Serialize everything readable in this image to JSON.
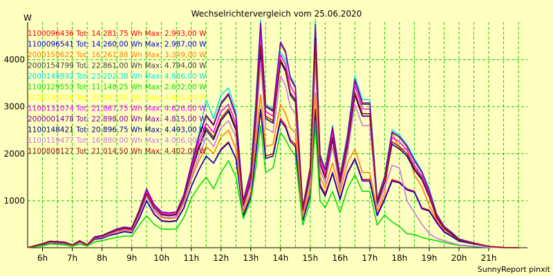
{
  "chart_data": {
    "type": "line",
    "title": "Wechselrichtervergleich vom 25.06.2020",
    "ylabel": "W",
    "footer": "SunnyReport pinxit",
    "ylim": [
      0,
      4800
    ],
    "xlim": [
      5.5,
      22.3
    ],
    "y_ticks": [
      1000,
      2000,
      3000,
      4000
    ],
    "x_ticks": [
      {
        "value": 6,
        "label": "6h"
      },
      {
        "value": 7,
        "label": "7h"
      },
      {
        "value": 8,
        "label": "8h"
      },
      {
        "value": 9,
        "label": "9h"
      },
      {
        "value": 10,
        "label": "10h"
      },
      {
        "value": 11,
        "label": "11h"
      },
      {
        "value": 12,
        "label": "12h"
      },
      {
        "value": 13,
        "label": "13h"
      },
      {
        "value": 14,
        "label": "14h"
      },
      {
        "value": 15,
        "label": "15h"
      },
      {
        "value": 16,
        "label": "16h"
      },
      {
        "value": 17,
        "label": "17h"
      },
      {
        "value": 18,
        "label": "18h"
      },
      {
        "value": 19,
        "label": "19h"
      },
      {
        "value": 20,
        "label": "20h"
      },
      {
        "value": 21,
        "label": "21h"
      }
    ],
    "grid": true,
    "legend_position": "top-left",
    "x": [
      5.5,
      5.75,
      6,
      6.25,
      6.5,
      6.75,
      7,
      7.25,
      7.5,
      7.75,
      8,
      8.25,
      8.5,
      8.75,
      9,
      9.25,
      9.5,
      9.75,
      10,
      10.25,
      10.5,
      10.75,
      11,
      11.25,
      11.5,
      11.75,
      12,
      12.25,
      12.5,
      12.75,
      13,
      13.17,
      13.33,
      13.5,
      13.75,
      14,
      14.17,
      14.33,
      14.5,
      14.75,
      15,
      15.17,
      15.33,
      15.5,
      15.75,
      16,
      16.25,
      16.5,
      16.75,
      17,
      17.25,
      17.5,
      17.75,
      18,
      18.25,
      18.5,
      18.75,
      19,
      19.25,
      19.5,
      19.75,
      20,
      20.5,
      21,
      21.5,
      22
    ],
    "series": [
      {
        "name": "1100096436 Tot: 14.281,75 Wh Max: 2.993,00 W",
        "color": "#FF0000",
        "values": [
          0,
          30,
          60,
          110,
          100,
          90,
          40,
          120,
          50,
          180,
          200,
          260,
          300,
          340,
          320,
          620,
          1000,
          720,
          580,
          560,
          580,
          850,
          1300,
          1650,
          1950,
          1800,
          2100,
          2250,
          1900,
          700,
          1100,
          2000,
          2950,
          1950,
          2000,
          2750,
          2600,
          2300,
          2200,
          600,
          1150,
          2950,
          1350,
          1150,
          1600,
          1050,
          1600,
          1900,
          1450,
          1450,
          700,
          1050,
          1450,
          1400,
          1250,
          1200,
          850,
          800,
          550,
          350,
          250,
          150,
          80,
          30,
          5,
          0
        ]
      },
      {
        "name": "1100096541 Tot: 14.260,00 Wh Max: 2.987,00 W",
        "color": "#0000CC",
        "values": [
          0,
          30,
          60,
          110,
          100,
          90,
          40,
          120,
          50,
          180,
          200,
          260,
          300,
          340,
          320,
          620,
          1000,
          710,
          570,
          550,
          570,
          840,
          1300,
          1650,
          1950,
          1800,
          2080,
          2230,
          1900,
          680,
          1080,
          1980,
          2930,
          1900,
          1950,
          2700,
          2560,
          2260,
          2150,
          580,
          1120,
          2930,
          1300,
          1100,
          1580,
          1020,
          1580,
          1880,
          1420,
          1420,
          680,
          1020,
          1420,
          1380,
          1230,
          1180,
          830,
          780,
          530,
          330,
          240,
          140,
          80,
          30,
          5,
          0
        ]
      },
      {
        "name": "2000150622 Tot: 16.261,88 Wh Max: 3.349,00 W",
        "color": "#FF8000",
        "values": [
          0,
          35,
          70,
          120,
          110,
          100,
          45,
          130,
          55,
          200,
          220,
          280,
          330,
          370,
          350,
          680,
          1100,
          780,
          640,
          620,
          640,
          940,
          1450,
          1850,
          2150,
          2000,
          2350,
          2500,
          2100,
          750,
          1200,
          2250,
          3250,
          2150,
          2200,
          3050,
          2850,
          2550,
          2450,
          650,
          1280,
          3300,
          1500,
          1280,
          1800,
          1180,
          1800,
          2100,
          1600,
          1600,
          780,
          1160,
          2450,
          2100,
          2100,
          1550,
          1300,
          900,
          600,
          400,
          280,
          160,
          90,
          30,
          5,
          0
        ]
      },
      {
        "name": "2000154799 Tot: 22.861,00 Wh Max: 4.794,00 W",
        "color": "#404040",
        "values": [
          0,
          45,
          90,
          140,
          130,
          120,
          60,
          150,
          65,
          230,
          260,
          330,
          400,
          440,
          420,
          800,
          1250,
          920,
          760,
          740,
          760,
          1120,
          1750,
          2350,
          2800,
          2600,
          3050,
          3250,
          2800,
          980,
          1600,
          3000,
          4750,
          3000,
          2900,
          4350,
          4150,
          3600,
          3400,
          850,
          1700,
          4700,
          1950,
          1650,
          2550,
          1500,
          2350,
          3550,
          3050,
          3050,
          1000,
          1500,
          2450,
          2350,
          2150,
          1850,
          1600,
          1200,
          700,
          450,
          320,
          180,
          100,
          30,
          5,
          0
        ]
      },
      {
        "name": "2000149892 Tot: 23.202,38 Wh Max: 4.856,00 W",
        "color": "#00E5E5",
        "values": [
          0,
          45,
          90,
          140,
          130,
          120,
          60,
          150,
          65,
          230,
          260,
          330,
          400,
          440,
          420,
          800,
          1250,
          920,
          760,
          740,
          760,
          1130,
          1780,
          2400,
          3150,
          2750,
          3250,
          3400,
          2900,
          1000,
          1650,
          3150,
          4850,
          3050,
          2950,
          4150,
          4000,
          3650,
          3450,
          860,
          1720,
          4850,
          2000,
          1680,
          2600,
          1520,
          2400,
          3650,
          3150,
          3150,
          1050,
          1520,
          2500,
          2400,
          2200,
          1900,
          1640,
          1250,
          720,
          460,
          330,
          190,
          100,
          30,
          5,
          0
        ]
      },
      {
        "name": "1100129553 Tot: 11.148,25 Wh Max: 2.632,00 W",
        "color": "#00DD00",
        "values": [
          0,
          20,
          40,
          80,
          70,
          60,
          30,
          80,
          35,
          120,
          150,
          190,
          220,
          250,
          240,
          480,
          680,
          500,
          400,
          390,
          400,
          640,
          1050,
          1300,
          1500,
          1250,
          1600,
          1850,
          1500,
          620,
          1000,
          1700,
          2600,
          1600,
          1700,
          2450,
          2300,
          2100,
          1950,
          480,
          980,
          2600,
          1000,
          850,
          1200,
          750,
          1250,
          1550,
          1200,
          1200,
          480,
          700,
          550,
          450,
          300,
          280,
          220,
          180,
          150,
          110,
          80,
          50,
          20,
          10,
          0,
          0
        ]
      },
      {
        "name": "1100131026 Tot: 21.062,50 Wh Max: 4.445,00 W",
        "color": "#FFFF00",
        "values": [
          0,
          40,
          80,
          130,
          120,
          110,
          55,
          140,
          60,
          210,
          240,
          310,
          370,
          410,
          390,
          750,
          1150,
          860,
          710,
          690,
          710,
          1040,
          1620,
          2150,
          2550,
          2350,
          2750,
          2950,
          2550,
          900,
          1450,
          2750,
          4350,
          2800,
          2700,
          4000,
          3800,
          3300,
          3150,
          800,
          1550,
          4400,
          1800,
          1500,
          2350,
          1400,
          2200,
          3300,
          2850,
          2850,
          950,
          1400,
          2250,
          2150,
          2000,
          1700,
          1480,
          1100,
          650,
          420,
          300,
          170,
          90,
          30,
          5,
          0
        ]
      },
      {
        "name": "1100131074 Tot: 21.867,75 Wh Max: 4.626,00 W",
        "color": "#FF00FF",
        "values": [
          0,
          42,
          85,
          135,
          125,
          115,
          58,
          145,
          62,
          220,
          250,
          320,
          385,
          425,
          405,
          770,
          1200,
          890,
          730,
          710,
          730,
          1080,
          1680,
          2250,
          2650,
          2450,
          2900,
          3050,
          2650,
          930,
          1520,
          2850,
          4550,
          2900,
          2800,
          4100,
          3900,
          3450,
          3250,
          820,
          1620,
          4600,
          1880,
          1560,
          2450,
          1450,
          2280,
          3450,
          2950,
          2950,
          980,
          1450,
          2350,
          2250,
          2080,
          1760,
          1520,
          1150,
          680,
          430,
          310,
          175,
          95,
          30,
          5,
          0
        ]
      },
      {
        "name": "2000001478 Tot: 22.898,00 Wh Max: 4.815,00 W",
        "color": "#8000A0",
        "values": [
          0,
          45,
          90,
          140,
          130,
          120,
          60,
          150,
          65,
          230,
          260,
          330,
          400,
          440,
          420,
          800,
          1250,
          920,
          760,
          740,
          760,
          1120,
          1760,
          2370,
          2820,
          2620,
          3080,
          3280,
          2820,
          990,
          1620,
          3020,
          4780,
          3020,
          2920,
          4380,
          4180,
          3620,
          3420,
          860,
          1710,
          4750,
          1960,
          1660,
          2560,
          1510,
          2360,
          3580,
          3080,
          3080,
          1010,
          1510,
          2460,
          2360,
          2160,
          1860,
          1610,
          1210,
          710,
          455,
          325,
          185,
          100,
          30,
          5,
          0
        ]
      },
      {
        "name": "1100148421 Tot: 20.896,75 Wh Max: 4.493,00 W",
        "color": "#000080",
        "values": [
          0,
          40,
          80,
          130,
          120,
          110,
          55,
          140,
          60,
          210,
          240,
          310,
          370,
          410,
          390,
          750,
          1150,
          850,
          700,
          680,
          700,
          1030,
          1600,
          2100,
          2500,
          2300,
          2700,
          2900,
          2500,
          880,
          1420,
          2700,
          4200,
          2750,
          2650,
          3950,
          3750,
          3250,
          3100,
          790,
          1520,
          4450,
          1780,
          1480,
          2300,
          1380,
          2150,
          3250,
          2800,
          2800,
          930,
          1380,
          2200,
          2100,
          1950,
          1650,
          1450,
          1080,
          640,
          410,
          290,
          165,
          90,
          30,
          5,
          0
        ]
      },
      {
        "name": "1100119477 Tot: 16.880,00 Wh Max: 4.006,00 W",
        "color": "#CC77E0",
        "values": [
          0,
          38,
          75,
          125,
          115,
          105,
          50,
          130,
          55,
          200,
          225,
          290,
          345,
          385,
          365,
          700,
          1080,
          800,
          660,
          640,
          660,
          970,
          1500,
          1950,
          2350,
          2150,
          2550,
          2700,
          2350,
          830,
          1330,
          2500,
          3950,
          2550,
          2450,
          3650,
          3450,
          3000,
          2850,
          740,
          1420,
          3950,
          1650,
          1380,
          2150,
          1280,
          2000,
          3050,
          2600,
          2600,
          870,
          1280,
          1750,
          1700,
          1000,
          750,
          500,
          300,
          200,
          150,
          100,
          60,
          30,
          10,
          0,
          0
        ]
      },
      {
        "name": "1100808127 Tot: 21.014,50 Wh Max: 4.402,00 W",
        "color": "#A01010",
        "values": [
          0,
          40,
          80,
          130,
          120,
          110,
          55,
          140,
          60,
          210,
          240,
          310,
          370,
          410,
          390,
          750,
          1150,
          860,
          710,
          690,
          710,
          1040,
          1620,
          2150,
          2550,
          2350,
          2750,
          2950,
          2550,
          900,
          1450,
          2750,
          4300,
          2800,
          2700,
          4000,
          3800,
          3300,
          3150,
          800,
          1550,
          4380,
          1800,
          1500,
          2350,
          1400,
          2200,
          3300,
          2850,
          2850,
          950,
          1400,
          2250,
          2150,
          2000,
          1700,
          1480,
          1100,
          650,
          420,
          300,
          170,
          90,
          30,
          5,
          0
        ]
      }
    ]
  }
}
